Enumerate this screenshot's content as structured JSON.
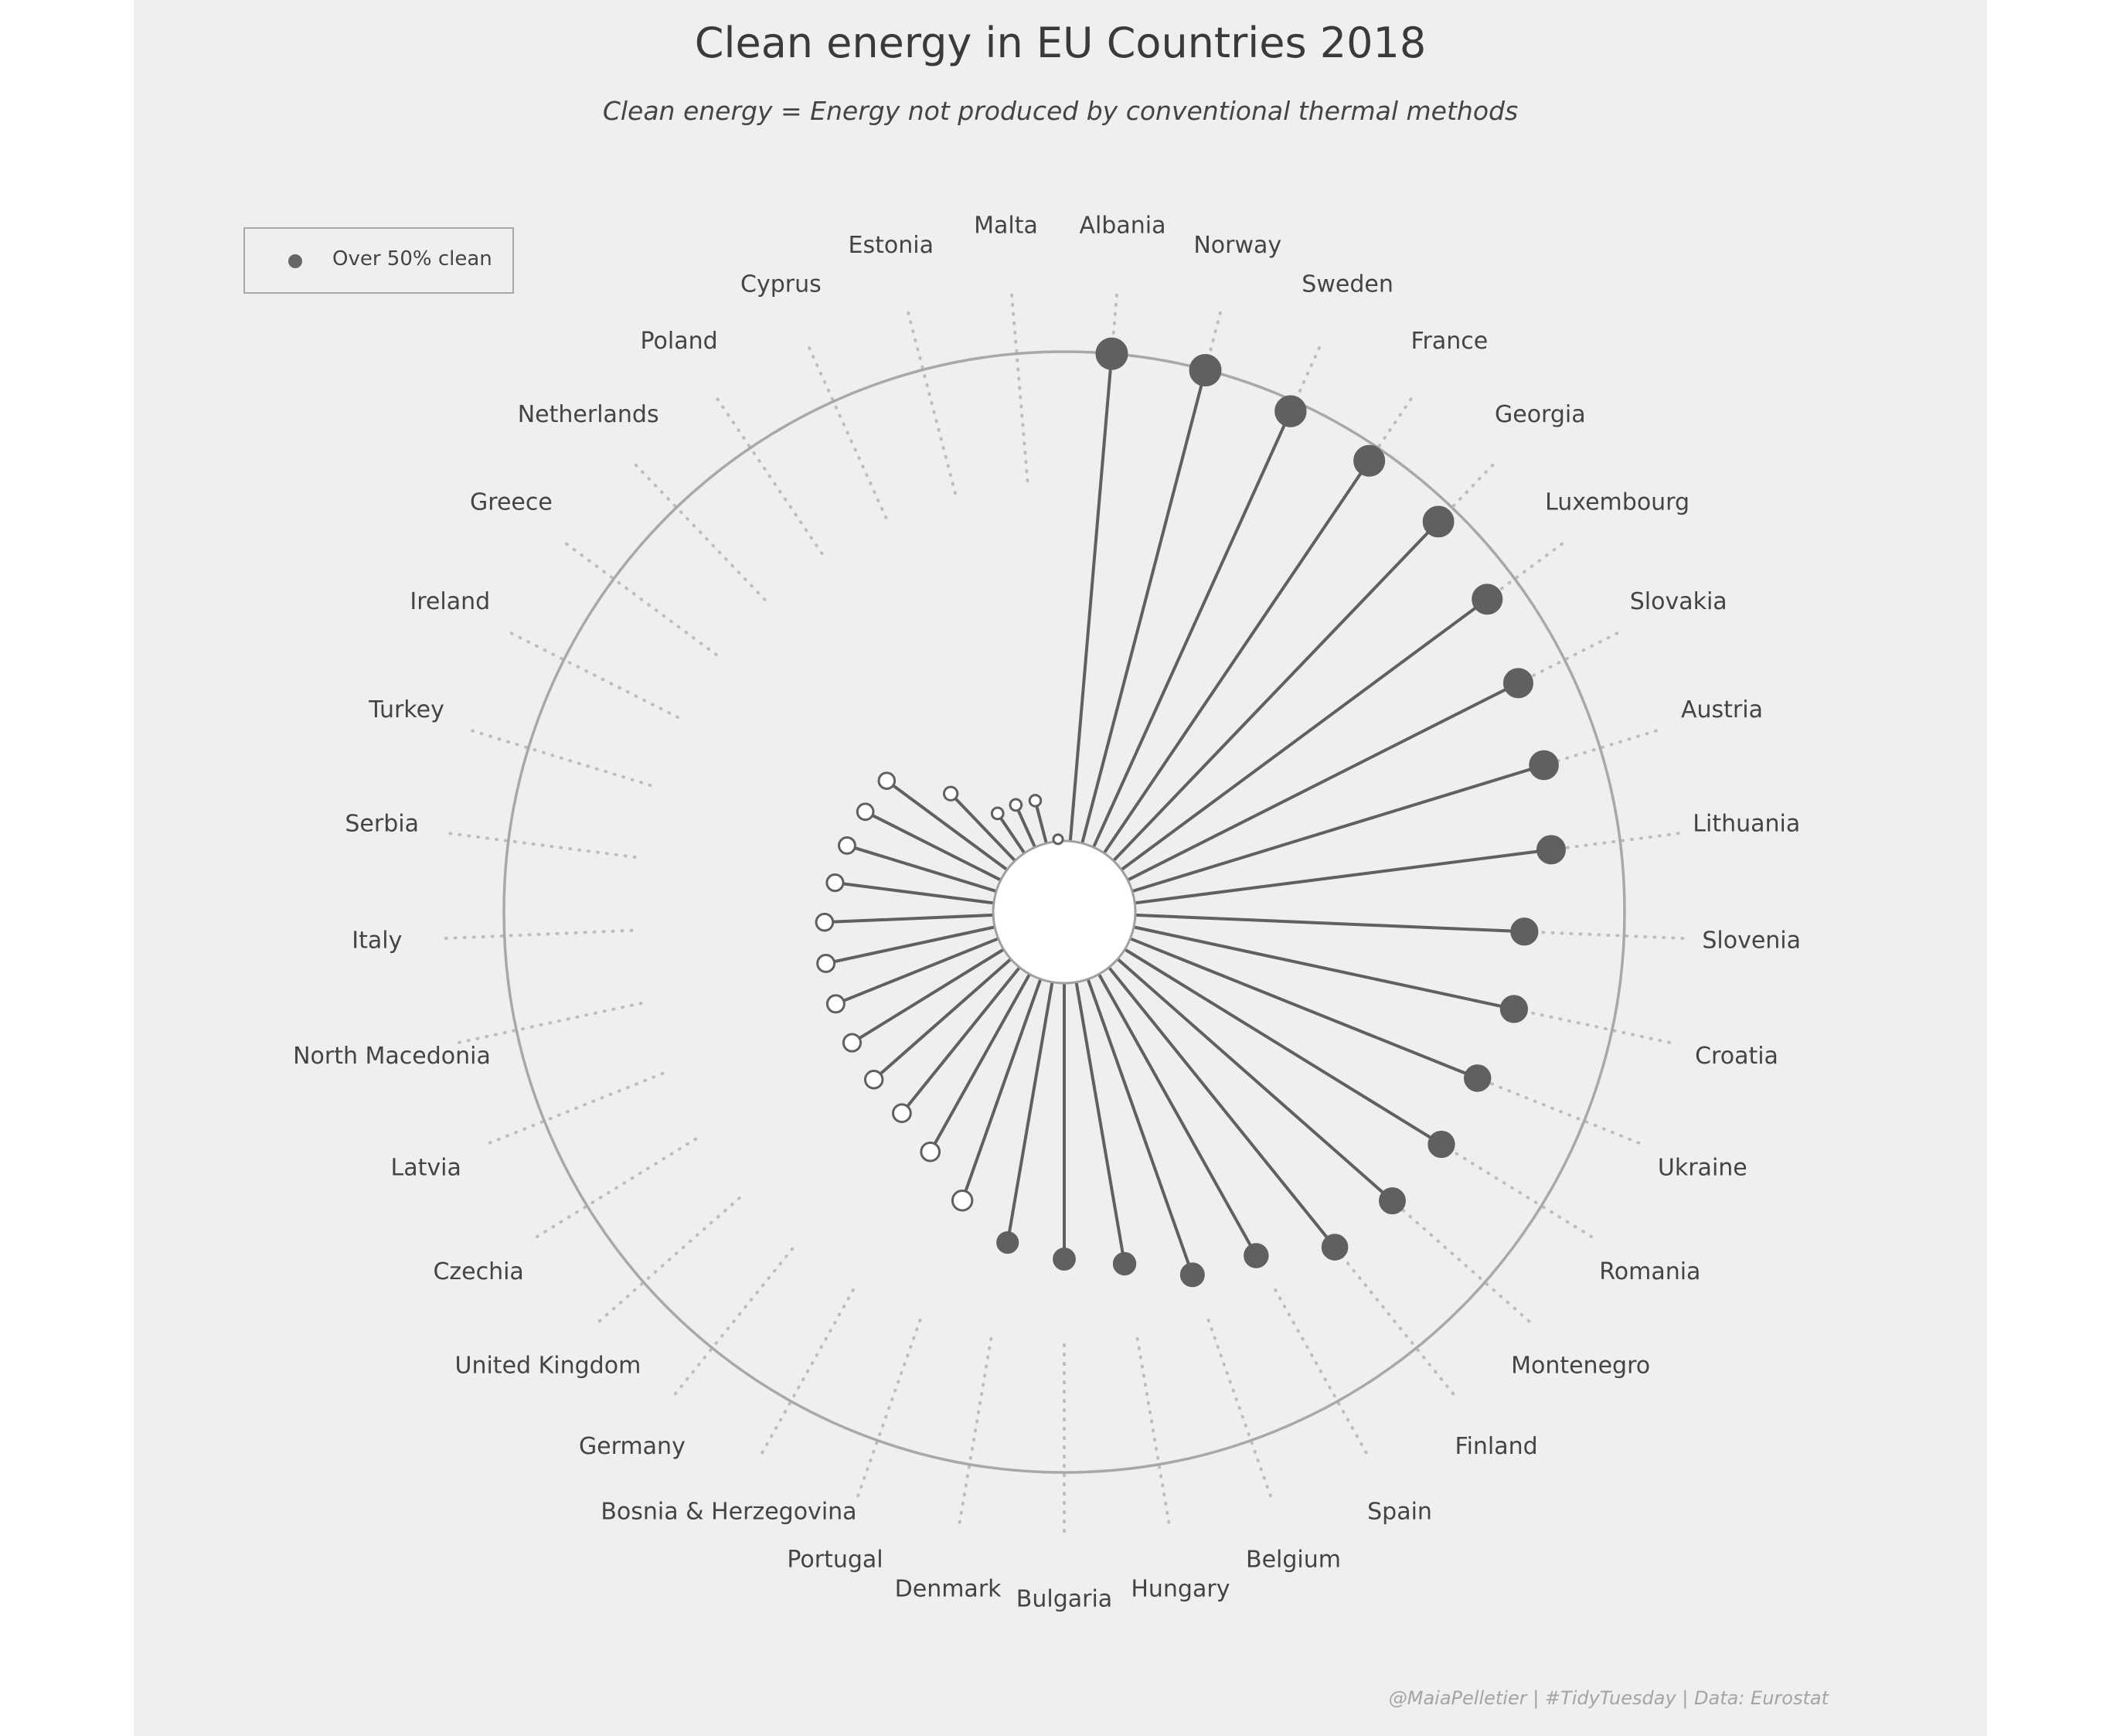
{
  "chart_data": {
    "type": "radial-lollipop",
    "title": "Clean energy in EU Countries 2018",
    "subtitle": "Clean energy = Energy not produced by conventional thermal methods",
    "caption": "@MaiaPelletier | #TidyTuesday | Data: Eurostat",
    "legend": {
      "label": "Over 50% clean",
      "position": "top-left"
    },
    "value_unit": "share of clean energy (%)",
    "reference_circle": 100,
    "r_range": [
      0,
      100
    ],
    "countries": [
      {
        "name": "Albania",
        "value": 100.0,
        "over_50": true
      },
      {
        "name": "Norway",
        "value": 99.9,
        "over_50": true
      },
      {
        "name": "Sweden",
        "value": 97.8,
        "over_50": true
      },
      {
        "name": "France",
        "value": 96.8,
        "over_50": true
      },
      {
        "name": "Georgia",
        "value": 96.0,
        "over_50": true
      },
      {
        "name": "Luxembourg",
        "value": 93.0,
        "over_50": true
      },
      {
        "name": "Slovakia",
        "value": 89.4,
        "over_50": true
      },
      {
        "name": "Austria",
        "value": 88.0,
        "over_50": true
      },
      {
        "name": "Lithuania",
        "value": 85.8,
        "over_50": true
      },
      {
        "name": "Slovenia",
        "value": 79.6,
        "over_50": true
      },
      {
        "name": "Croatia",
        "value": 79.5,
        "over_50": true
      },
      {
        "name": "Ukraine",
        "value": 76.5,
        "over_50": true
      },
      {
        "name": "Romania",
        "value": 76.0,
        "over_50": true
      },
      {
        "name": "Montenegro",
        "value": 74.8,
        "over_50": true
      },
      {
        "name": "Finland",
        "value": 73.5,
        "over_50": true
      },
      {
        "name": "Spain",
        "value": 65.9,
        "over_50": true
      },
      {
        "name": "Belgium",
        "value": 64.1,
        "over_50": true
      },
      {
        "name": "Hungary",
        "value": 58.4,
        "over_50": true
      },
      {
        "name": "Bulgaria",
        "value": 56.4,
        "over_50": true
      },
      {
        "name": "Denmark",
        "value": 54.0,
        "over_50": true
      },
      {
        "name": "Portugal",
        "value": 48.0,
        "over_50": false
      },
      {
        "name": "Bosnia & Herzegovina",
        "value": 41.6,
        "over_50": false
      },
      {
        "name": "Germany",
        "value": 38.3,
        "over_50": false
      },
      {
        "name": "United Kingdom",
        "value": 37.3,
        "over_50": false
      },
      {
        "name": "Czechia",
        "value": 36.4,
        "over_50": false
      },
      {
        "name": "Latvia",
        "value": 35.8,
        "over_50": false
      },
      {
        "name": "North Macedonia",
        "value": 35.3,
        "over_50": false
      },
      {
        "name": "Italy",
        "value": 34.5,
        "over_50": false
      },
      {
        "name": "Serbia",
        "value": 32.7,
        "over_50": false
      },
      {
        "name": "Turkey",
        "value": 31.9,
        "over_50": false
      },
      {
        "name": "Ireland",
        "value": 31.0,
        "over_50": false
      },
      {
        "name": "Greece",
        "value": 30.6,
        "over_50": false
      },
      {
        "name": "Netherlands",
        "value": 19.0,
        "over_50": false
      },
      {
        "name": "Poland",
        "value": 9.8,
        "over_50": false
      },
      {
        "name": "Cyprus",
        "value": 9.5,
        "over_50": false
      },
      {
        "name": "Estonia",
        "value": 9.0,
        "over_50": false
      },
      {
        "name": "Malta",
        "value": 0.4,
        "over_50": false
      }
    ]
  },
  "colors": {
    "background": "#efefef",
    "stem": "#606060",
    "filled_point": "#606060",
    "open_point_fill": "#ffffff",
    "reference_circle": "#a8a8a8",
    "guide_dots": "#bdbdbd",
    "text": "#444444"
  }
}
